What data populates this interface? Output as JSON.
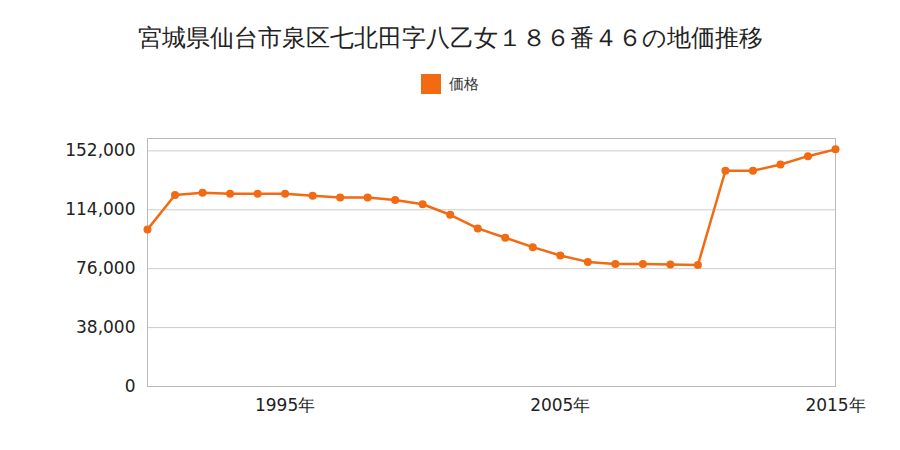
{
  "chart_data": {
    "type": "line",
    "title": "宮城県仙台市泉区七北田字八乙女１８６番４６の地価推移",
    "x": [
      1990,
      1991,
      1992,
      1993,
      1994,
      1995,
      1996,
      1997,
      1998,
      1999,
      2000,
      2001,
      2002,
      2003,
      2004,
      2005,
      2006,
      2007,
      2008,
      2009,
      2010,
      2011,
      2012,
      2013,
      2014,
      2015
    ],
    "series": [
      {
        "name": "価格",
        "color": "#f26a12",
        "marker": "circle",
        "line_style": "solid",
        "values": [
          101300,
          123600,
          125000,
          124300,
          124300,
          124300,
          123000,
          122000,
          122000,
          120300,
          117600,
          110800,
          102000,
          96000,
          89900,
          84500,
          80400,
          79000,
          79000,
          78700,
          78400,
          139200,
          139200,
          143200,
          148600,
          153000
        ]
      }
    ],
    "xlim": [
      1990,
      2015
    ],
    "xticks": [
      {
        "value": 1995,
        "label": "1995年"
      },
      {
        "value": 2005,
        "label": "2005年"
      },
      {
        "value": 2015,
        "label": "2015年"
      }
    ],
    "ylim": [
      0,
      160000
    ],
    "yticks": [
      0,
      {
        "value": 38000,
        "label": "38,000"
      },
      {
        "value": 76000,
        "label": "76,000"
      },
      {
        "value": 114000,
        "label": "114,000"
      },
      {
        "value": 152000,
        "label": "152,000"
      }
    ],
    "grid": true,
    "legend": "top"
  }
}
